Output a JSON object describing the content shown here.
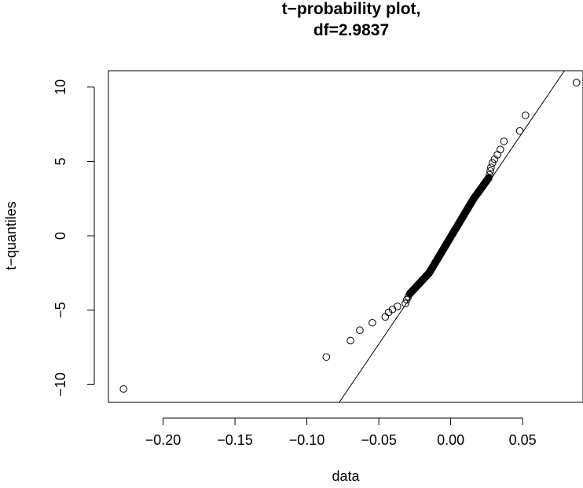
{
  "chart_data": {
    "type": "scatter",
    "title_lines": [
      "t−probability plot,",
      "df=2.9837"
    ],
    "xlabel": "data",
    "ylabel": "t−quantiles",
    "xlim": [
      -0.238,
      0.092
    ],
    "ylim": [
      -11.2,
      11.1
    ],
    "x_ticks": [
      -0.2,
      -0.15,
      -0.1,
      -0.05,
      0.0,
      0.05
    ],
    "x_tick_labels": [
      "−0.20",
      "−0.15",
      "−0.10",
      "−0.05",
      "0.00",
      "0.05"
    ],
    "y_ticks": [
      -10,
      -5,
      0,
      5,
      10
    ],
    "y_tick_labels": [
      "−10",
      "−5",
      "0",
      "5",
      "10"
    ],
    "reference_line": {
      "x": [
        -0.0775,
        0.0791
      ],
      "y": [
        -11.2,
        11.1
      ]
    },
    "outliers": [
      {
        "x": -0.2275,
        "y": -10.3
      },
      {
        "x": -0.0865,
        "y": -8.15
      },
      {
        "x": -0.0697,
        "y": -7.05
      },
      {
        "x": -0.0632,
        "y": -6.35
      },
      {
        "x": -0.0545,
        "y": -5.85
      },
      {
        "x": -0.0455,
        "y": -5.45
      },
      {
        "x": -0.0432,
        "y": -5.15
      },
      {
        "x": -0.0405,
        "y": -4.95
      },
      {
        "x": -0.037,
        "y": -4.75
      },
      {
        "x": -0.0315,
        "y": -4.55
      },
      {
        "x": -0.0305,
        "y": -4.3
      },
      {
        "x": -0.0295,
        "y": -4.1
      },
      {
        "x": 0.0875,
        "y": 10.3
      },
      {
        "x": 0.052,
        "y": 8.1
      },
      {
        "x": 0.048,
        "y": 7.05
      },
      {
        "x": 0.037,
        "y": 6.35
      },
      {
        "x": 0.0345,
        "y": 5.8
      },
      {
        "x": 0.0325,
        "y": 5.45
      },
      {
        "x": 0.0305,
        "y": 5.15
      },
      {
        "x": 0.029,
        "y": 4.9
      },
      {
        "x": 0.028,
        "y": 4.6
      },
      {
        "x": 0.0275,
        "y": 4.35
      },
      {
        "x": 0.027,
        "y": 4.1
      }
    ],
    "dense_segments": [
      {
        "x_start": -0.0285,
        "x_end": -0.015,
        "y_start": -3.9,
        "y_end": -2.5,
        "n": 45
      },
      {
        "x_start": -0.015,
        "x_end": 0.016,
        "y_start": -2.5,
        "y_end": 2.5,
        "n": 150
      },
      {
        "x_start": 0.016,
        "x_end": 0.0265,
        "y_start": 2.5,
        "y_end": 3.9,
        "n": 45
      }
    ]
  }
}
